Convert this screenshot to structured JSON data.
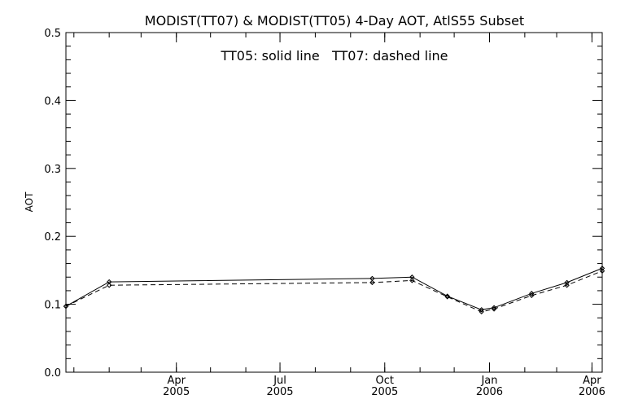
{
  "chart_data": {
    "type": "line",
    "title": "MODIST(TT07) & MODIST(TT05) 4-Day AOT, AtlS55 Subset",
    "annotation": "TT05: solid line   TT07: dashed line",
    "xlabel": "",
    "ylabel": "AOT",
    "x": [
      "2004-12-25",
      "2005-02-01",
      "2005-09-20",
      "2005-10-25",
      "2005-11-25",
      "2005-12-25",
      "2006-01-05",
      "2006-02-07",
      "2006-03-10",
      "2006-04-10"
    ],
    "xlim": [
      "2004-12-25",
      "2006-04-10"
    ],
    "ylim": [
      0.0,
      0.5
    ],
    "yticks": [
      0.0,
      0.1,
      0.2,
      0.3,
      0.4,
      0.5
    ],
    "ytick_labels": [
      "0.0",
      "0.1",
      "0.2",
      "0.3",
      "0.4",
      "0.5"
    ],
    "xticks": [
      {
        "date": "2005-04-01",
        "line1": "Apr",
        "line2": "2005"
      },
      {
        "date": "2005-07-01",
        "line1": "Jul",
        "line2": "2005"
      },
      {
        "date": "2005-10-01",
        "line1": "Oct",
        "line2": "2005"
      },
      {
        "date": "2006-01-01",
        "line1": "Jan",
        "line2": "2006"
      },
      {
        "date": "2006-04-01",
        "line1": "Apr",
        "line2": "2006"
      }
    ],
    "series": [
      {
        "name": "TT05",
        "style": "solid",
        "values": [
          0.097,
          0.133,
          0.138,
          0.14,
          0.112,
          0.092,
          0.095,
          0.116,
          0.132,
          0.153
        ]
      },
      {
        "name": "TT07",
        "style": "dashed",
        "values": [
          0.097,
          0.128,
          0.132,
          0.135,
          0.111,
          0.089,
          0.093,
          0.113,
          0.128,
          0.149
        ]
      }
    ],
    "grid": false,
    "colors": {
      "line": "#000000",
      "background": "#ffffff"
    }
  }
}
